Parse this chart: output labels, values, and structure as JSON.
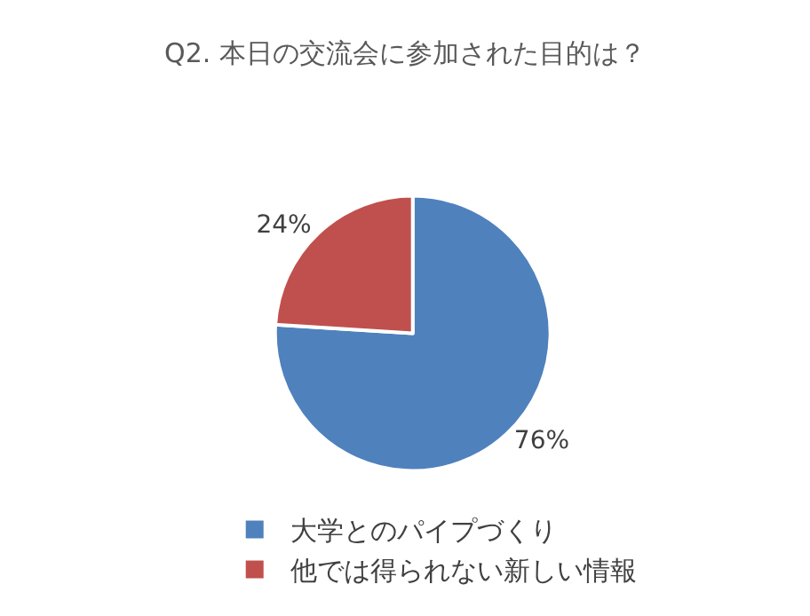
{
  "chart_data": {
    "type": "pie",
    "title": "Q2. 本日の交流会に参加された目的は？",
    "categories": [
      "大学とのパイプづくり",
      "他では得られない新しい情報"
    ],
    "values": [
      76,
      24
    ],
    "colors": [
      "#4f81bd",
      "#c0504d"
    ],
    "value_labels": [
      "76%",
      "24%"
    ],
    "legend": "bottom"
  }
}
